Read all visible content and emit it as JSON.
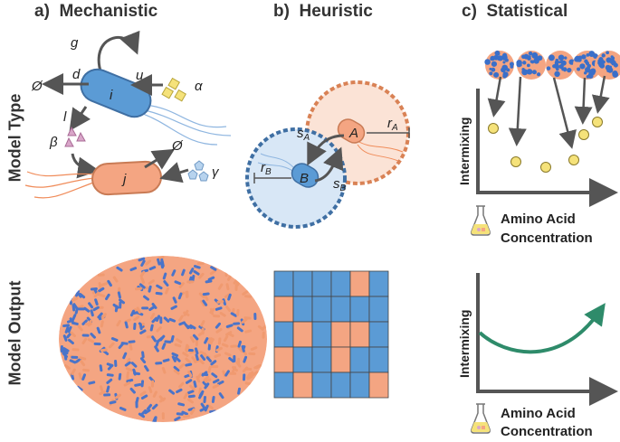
{
  "panels": {
    "a": {
      "label": "a)",
      "title": "Mechanistic"
    },
    "b": {
      "label": "b)",
      "title": "Heuristic"
    },
    "c": {
      "label": "c)",
      "title": "Statistical"
    }
  },
  "rows": {
    "model_type": "Model Type",
    "model_output": "Model Output"
  },
  "mechanistic": {
    "rate_g": "g",
    "rate_d": "d",
    "rate_u": "u",
    "rate_l": "l",
    "cell_i": "i",
    "cell_j": "j",
    "empty1": "Ø",
    "empty2": "Ø",
    "alpha": "α",
    "beta": "β",
    "gamma": "γ"
  },
  "heuristic": {
    "cell_A": "A",
    "cell_B": "B",
    "s_A": "s",
    "s_A_sub": "A",
    "s_B": "s",
    "s_B_sub": "B",
    "r_A": "r",
    "r_A_sub": "A",
    "r_B": "r",
    "r_B_sub": "B",
    "grid": [
      [
        "b",
        "b",
        "b",
        "b",
        "o",
        "b"
      ],
      [
        "o",
        "b",
        "b",
        "b",
        "b",
        "b"
      ],
      [
        "b",
        "o",
        "b",
        "o",
        "o",
        "b"
      ],
      [
        "o",
        "b",
        "b",
        "o",
        "b",
        "b"
      ],
      [
        "b",
        "o",
        "b",
        "b",
        "b",
        "o"
      ]
    ]
  },
  "statistical": {
    "top_ylabel": "Intermixing",
    "top_xlabel_line1": "Amino Acid",
    "top_xlabel_line2": "Concentration",
    "bottom_ylabel": "Intermixing",
    "bottom_xlabel_line1": "Amino Acid",
    "bottom_xlabel_line2": "Concentration"
  },
  "colors": {
    "blue": "#5b9bd5",
    "orange": "#f4a582",
    "green": "#2e8b6a",
    "yellow": "#f5e27a",
    "dark": "#555555"
  }
}
